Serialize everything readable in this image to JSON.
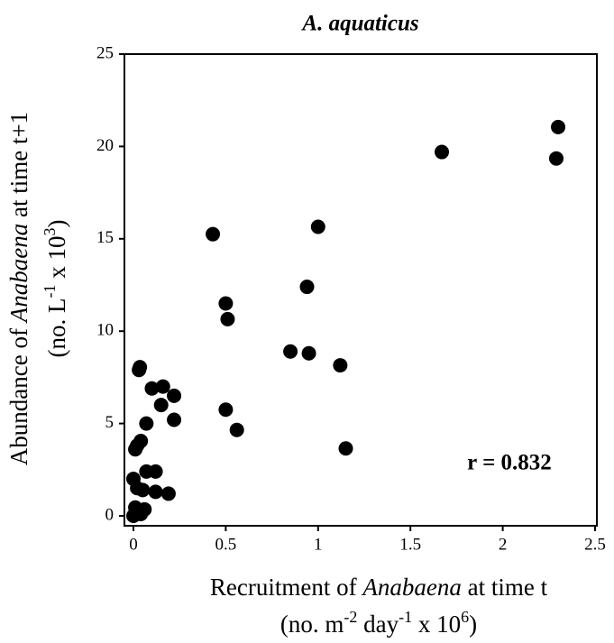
{
  "chart_data": {
    "type": "scatter",
    "title": "A. aquaticus",
    "x_label": {
      "line1": [
        "Recruitment of ",
        "Anabaena",
        " at time t"
      ],
      "line2": [
        "(no.  m",
        "-2",
        " day",
        "-1",
        " x 10",
        "6",
        ")"
      ]
    },
    "y_label": {
      "line1": [
        "Abundance of ",
        "Anabaena",
        " at time t+1"
      ],
      "line2": [
        "(no. L",
        "-1",
        " x 10",
        "3",
        ")"
      ]
    },
    "annotation": "r = 0.832",
    "color": "#000000",
    "xlim": [
      0,
      2.5
    ],
    "xticks": [
      0,
      0.5,
      1,
      1.5,
      2,
      2.5
    ],
    "ylim": [
      0,
      25
    ],
    "yticks": [
      0,
      5,
      10,
      15,
      20,
      25
    ],
    "x": [
      0,
      0.01,
      0.04,
      0.06,
      0,
      0.02,
      0.05,
      0.07,
      0.12,
      0.12,
      0.19,
      0.01,
      0.02,
      0.04,
      0.07,
      0.03,
      0.035,
      0.1,
      0.16,
      0.15,
      0.22,
      0.22,
      0.43,
      0.5,
      0.51,
      0.5,
      0.56,
      0.85,
      0.95,
      0.94,
      1.0,
      1.12,
      1.15,
      1.67,
      2.3,
      2.29
    ],
    "y": [
      0,
      0.45,
      0.1,
      0.35,
      2.0,
      1.5,
      1.4,
      2.4,
      2.4,
      1.3,
      1.2,
      3.6,
      3.8,
      4.05,
      5.0,
      7.9,
      8.05,
      6.9,
      7.0,
      6.0,
      6.5,
      5.2,
      15.25,
      11.5,
      10.65,
      5.75,
      4.65,
      8.9,
      8.8,
      12.4,
      15.65,
      8.15,
      3.65,
      19.7,
      21.05,
      19.35
    ]
  }
}
